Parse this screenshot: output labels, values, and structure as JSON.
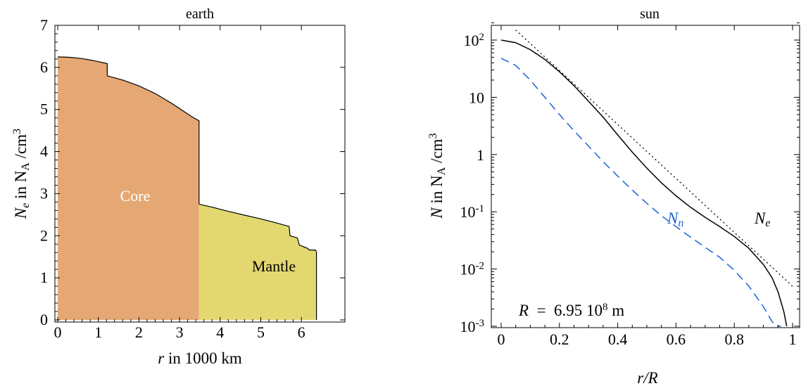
{
  "chart_data": [
    {
      "type": "area",
      "title": "earth",
      "xlabel": {
        "var": "r",
        "rest": " in 1000 km"
      },
      "ylabel": {
        "var": "N",
        "sub": "e",
        "mid": " in N",
        "sub2": "A",
        "rest": " /cm",
        "sup": "3"
      },
      "xlim": [
        0,
        6.5
      ],
      "ylim": [
        0,
        7
      ],
      "xticks": [
        "0",
        "1",
        "2",
        "3",
        "4",
        "5",
        "6"
      ],
      "yticks": [
        "0",
        "1",
        "2",
        "3",
        "4",
        "5",
        "6",
        "7"
      ],
      "grid": false,
      "colors": {
        "core": "#e5a874",
        "mantle": "#e3d870"
      },
      "series": [
        {
          "name": "Core",
          "x": [
            0,
            0.3,
            0.6,
            0.9,
            1.22,
            1.22,
            1.6,
            2.0,
            2.4,
            2.8,
            3.1,
            3.3,
            3.48
          ],
          "y": [
            6.25,
            6.24,
            6.21,
            6.16,
            6.09,
            5.8,
            5.7,
            5.56,
            5.38,
            5.15,
            4.96,
            4.83,
            4.73
          ]
        },
        {
          "name": "Mantle",
          "x": [
            3.48,
            3.8,
            4.2,
            4.6,
            5.0,
            5.4,
            5.7,
            5.72,
            5.9,
            5.95,
            6.15,
            6.2,
            6.35,
            6.371
          ],
          "y": [
            2.75,
            2.68,
            2.58,
            2.49,
            2.4,
            2.3,
            2.22,
            2.0,
            1.95,
            1.78,
            1.7,
            1.66,
            1.66,
            1.62
          ]
        }
      ]
    },
    {
      "type": "line",
      "title": "sun",
      "xlabel": {
        "var": "r/R"
      },
      "ylabel": {
        "var": "N",
        "mid": " in N",
        "sub2": "A",
        "rest": " /cm",
        "sup": "3"
      },
      "xlim": [
        0,
        1
      ],
      "ylim": [
        0.001,
        200
      ],
      "yscale": "log",
      "xticks": [
        "0",
        "0.2",
        "0.4",
        "0.6",
        "0.8",
        "1"
      ],
      "yticks": [
        {
          "v": 100,
          "base": "10",
          "sup": "2"
        },
        {
          "v": 10,
          "base": "10",
          "sup": ""
        },
        {
          "v": 1,
          "base": "1",
          "sup": ""
        },
        {
          "v": 0.1,
          "base": "10",
          "sup": "-1"
        },
        {
          "v": 0.01,
          "base": "10",
          "sup": "-2"
        },
        {
          "v": 0.001,
          "base": "10",
          "sup": "-3"
        }
      ],
      "grid": false,
      "annotation": {
        "var": "R",
        "text": "  =  6.95 10",
        "sup": "8",
        "unit": " m"
      },
      "series": [
        {
          "name": "Ne",
          "label": {
            "var": "N",
            "sub": "e"
          },
          "color": "#000000",
          "style": "solid",
          "x": [
            0,
            0.05,
            0.1,
            0.15,
            0.2,
            0.25,
            0.3,
            0.35,
            0.4,
            0.45,
            0.5,
            0.55,
            0.6,
            0.65,
            0.7,
            0.75,
            0.8,
            0.85,
            0.9,
            0.93,
            0.95,
            0.97,
            0.98
          ],
          "y": [
            100,
            90,
            68,
            46,
            28,
            16,
            8.5,
            4.5,
            2.2,
            1.1,
            0.58,
            0.32,
            0.19,
            0.12,
            0.08,
            0.055,
            0.037,
            0.023,
            0.012,
            0.007,
            0.004,
            0.0018,
            0.001
          ]
        },
        {
          "name": "Nn",
          "label": {
            "var": "N",
            "sub": "n"
          },
          "color": "#1a62d6",
          "style": "dashed",
          "x": [
            0,
            0.05,
            0.1,
            0.15,
            0.2,
            0.25,
            0.3,
            0.35,
            0.4,
            0.45,
            0.5,
            0.55,
            0.6,
            0.65,
            0.7,
            0.75,
            0.8,
            0.85,
            0.9,
            0.93,
            0.95,
            0.96
          ],
          "y": [
            48,
            36,
            20,
            10,
            5,
            2.6,
            1.4,
            0.75,
            0.42,
            0.24,
            0.14,
            0.085,
            0.055,
            0.036,
            0.024,
            0.016,
            0.0095,
            0.005,
            0.0022,
            0.0012,
            0.0008,
            0.0006
          ]
        },
        {
          "name": "fit",
          "color": "#000000",
          "style": "dotted",
          "x": [
            0.05,
            0.1,
            0.2,
            0.3,
            0.4,
            0.5,
            0.6,
            0.7,
            0.8,
            0.9,
            1.0
          ],
          "y": [
            150,
            87,
            29.4,
            9.93,
            3.35,
            1.13,
            0.383,
            0.129,
            0.0437,
            0.0148,
            0.005
          ]
        }
      ]
    }
  ]
}
